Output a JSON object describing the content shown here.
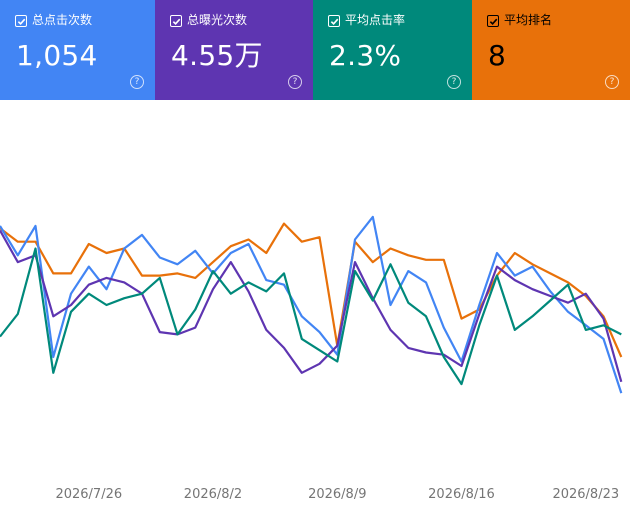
{
  "metrics": {
    "clicks": {
      "label": "总点击次数",
      "value": "1,054",
      "color": "#4285f4",
      "help": "?"
    },
    "impressions": {
      "label": "总曝光次数",
      "value": "4.55万",
      "color": "#5e35b1",
      "help": "?"
    },
    "ctr": {
      "label": "平均点击率",
      "value": "2.3%",
      "color": "#00897b",
      "help": "?"
    },
    "position": {
      "label": "平均排名",
      "value": "8",
      "color": "#e8710a",
      "help": "?"
    }
  },
  "chart_data": {
    "type": "line",
    "x": [
      "2026/7/21",
      "2026/7/22",
      "2026/7/23",
      "2026/7/24",
      "2026/7/25",
      "2026/7/26",
      "2026/7/27",
      "2026/7/28",
      "2026/7/29",
      "2026/7/30",
      "2026/7/31",
      "2026/8/1",
      "2026/8/2",
      "2026/8/3",
      "2026/8/4",
      "2026/8/5",
      "2026/8/6",
      "2026/8/7",
      "2026/8/8",
      "2026/8/9",
      "2026/8/10",
      "2026/8/11",
      "2026/8/12",
      "2026/8/13",
      "2026/8/14",
      "2026/8/15",
      "2026/8/16",
      "2026/8/17",
      "2026/8/18",
      "2026/8/19",
      "2026/8/20",
      "2026/8/21",
      "2026/8/22",
      "2026/8/23",
      "2026/8/24",
      "2026/8/25"
    ],
    "x_tick_labels": [
      "2026/7/26",
      "2026/8/2",
      "2026/8/9",
      "2026/8/16",
      "2026/8/23"
    ],
    "grid": false,
    "legend": "none",
    "series": [
      {
        "color": "#e8710a",
        "values": [
          84,
          78,
          78,
          64,
          64,
          77,
          73,
          75,
          63,
          63,
          64,
          62,
          69,
          76,
          79,
          73,
          86,
          78,
          80,
          32,
          78,
          69,
          75,
          72,
          70,
          70,
          44,
          48,
          63,
          73,
          68,
          64,
          60,
          54,
          45,
          27
        ]
      },
      {
        "color": "#4285f4",
        "values": [
          85,
          72,
          85,
          27,
          55,
          67,
          57,
          75,
          81,
          71,
          68,
          74,
          64,
          73,
          77,
          61,
          59,
          45,
          38,
          28,
          79,
          89,
          50,
          65,
          60,
          40,
          25,
          50,
          73,
          63,
          67,
          56,
          47,
          41,
          35,
          11
        ]
      },
      {
        "color": "#5e35b1",
        "values": [
          83,
          69,
          72,
          45,
          50,
          59,
          62,
          60,
          55,
          38,
          37,
          40,
          57,
          69,
          56,
          39,
          31,
          20,
          24,
          32,
          69,
          53,
          39,
          31,
          29,
          28,
          23,
          46,
          67,
          61,
          57,
          54,
          51,
          55,
          44,
          16
        ]
      },
      {
        "color": "#00897b",
        "values": [
          36,
          46,
          75,
          20,
          47,
          55,
          50,
          53,
          55,
          62,
          37,
          48,
          65,
          55,
          60,
          56,
          64,
          35,
          30,
          25,
          65,
          52,
          68,
          51,
          45,
          27,
          15,
          41,
          63,
          39,
          45,
          52,
          59,
          39,
          41,
          37
        ]
      }
    ]
  }
}
